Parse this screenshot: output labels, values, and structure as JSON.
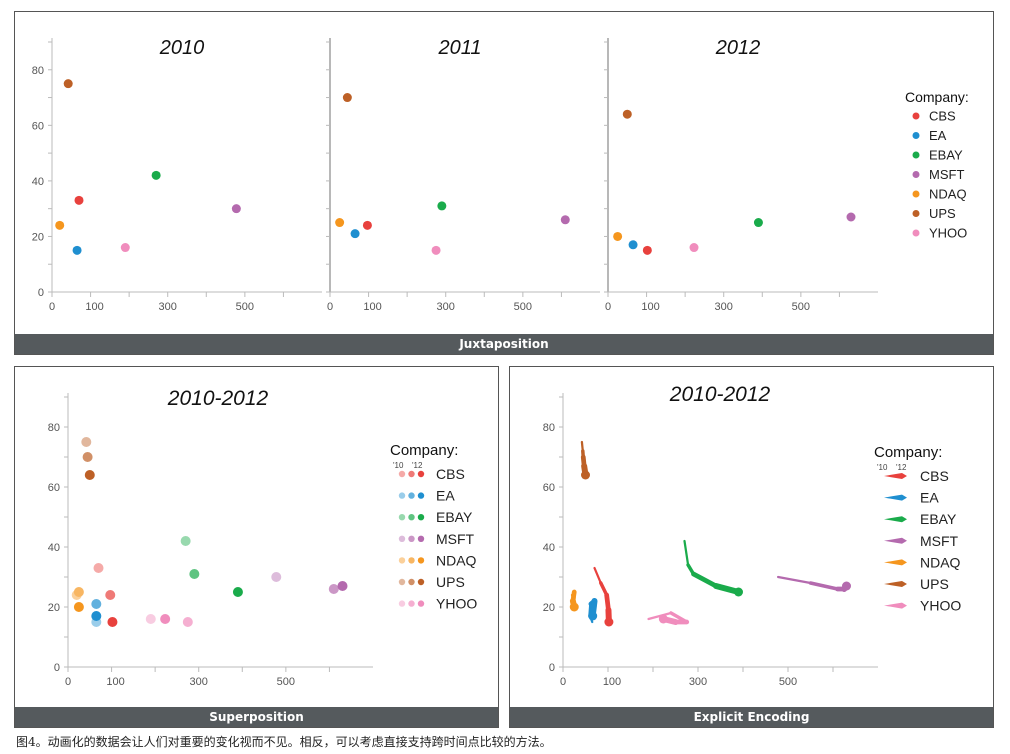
{
  "panels": {
    "juxtaposition": {
      "label": "Juxtaposition"
    },
    "superposition": {
      "label": "Superposition"
    },
    "explicit": {
      "label": "Explicit Encoding"
    }
  },
  "legend": {
    "title": "Company:",
    "year_labels": [
      "'10",
      "'12"
    ],
    "companies": [
      {
        "name": "CBS",
        "color": "#e8413d"
      },
      {
        "name": "EA",
        "color": "#1f8fd0"
      },
      {
        "name": "EBAY",
        "color": "#1aab4b"
      },
      {
        "name": "MSFT",
        "color": "#b46aae"
      },
      {
        "name": "NDAQ",
        "color": "#f5961e"
      },
      {
        "name": "UPS",
        "color": "#bd6026"
      },
      {
        "name": "YHOO",
        "color": "#f08dbd"
      }
    ]
  },
  "caption": "图4。动画化的数据会让人们对重要的变化视而不见。相反，可以考虑直接支持跨时间点比较的方法。",
  "chart_data": [
    {
      "type": "scatter",
      "title": "2010",
      "xticks": [
        0,
        100,
        300,
        500
      ],
      "yticks": [
        0,
        20,
        40,
        60,
        80
      ],
      "xlim": [
        0,
        700
      ],
      "ylim": [
        0,
        90
      ],
      "points": [
        {
          "company": "CBS",
          "x": 70,
          "y": 33
        },
        {
          "company": "EA",
          "x": 65,
          "y": 15
        },
        {
          "company": "EBAY",
          "x": 270,
          "y": 42
        },
        {
          "company": "MSFT",
          "x": 478,
          "y": 30
        },
        {
          "company": "NDAQ",
          "x": 20,
          "y": 24
        },
        {
          "company": "UPS",
          "x": 42,
          "y": 75
        },
        {
          "company": "YHOO",
          "x": 190,
          "y": 16
        }
      ]
    },
    {
      "type": "scatter",
      "title": "2011",
      "xticks": [
        0,
        100,
        300,
        500
      ],
      "yticks": [
        0,
        20,
        40,
        60,
        80
      ],
      "xlim": [
        0,
        700
      ],
      "ylim": [
        0,
        90
      ],
      "points": [
        {
          "company": "CBS",
          "x": 97,
          "y": 24
        },
        {
          "company": "EA",
          "x": 65,
          "y": 21
        },
        {
          "company": "EBAY",
          "x": 290,
          "y": 31
        },
        {
          "company": "MSFT",
          "x": 610,
          "y": 26
        },
        {
          "company": "NDAQ",
          "x": 25,
          "y": 25
        },
        {
          "company": "UPS",
          "x": 45,
          "y": 70
        },
        {
          "company": "YHOO",
          "x": 275,
          "y": 15
        }
      ]
    },
    {
      "type": "scatter",
      "title": "2012",
      "xticks": [
        0,
        100,
        300,
        500
      ],
      "yticks": [
        0,
        20,
        40,
        60,
        80
      ],
      "xlim": [
        0,
        700
      ],
      "ylim": [
        0,
        90
      ],
      "points": [
        {
          "company": "CBS",
          "x": 102,
          "y": 15
        },
        {
          "company": "EA",
          "x": 65,
          "y": 17
        },
        {
          "company": "EBAY",
          "x": 390,
          "y": 25
        },
        {
          "company": "MSFT",
          "x": 630,
          "y": 27
        },
        {
          "company": "NDAQ",
          "x": 25,
          "y": 20
        },
        {
          "company": "UPS",
          "x": 50,
          "y": 64
        },
        {
          "company": "YHOO",
          "x": 223,
          "y": 16
        }
      ]
    },
    {
      "type": "scatter",
      "title": "2010-2012",
      "xticks": [
        0,
        100,
        300,
        500
      ],
      "yticks": [
        0,
        20,
        40,
        60,
        80
      ],
      "xlim": [
        0,
        700
      ],
      "ylim": [
        0,
        90
      ],
      "series_by_year": [
        "2010",
        "2011",
        "2012"
      ]
    },
    {
      "type": "line",
      "title": "2010-2012",
      "xticks": [
        0,
        100,
        300,
        500
      ],
      "yticks": [
        0,
        20,
        40,
        60,
        80
      ],
      "xlim": [
        0,
        700
      ],
      "ylim": [
        0,
        90
      ],
      "trajectories": [
        {
          "company": "CBS",
          "path": [
            [
              70,
              33
            ],
            [
              84,
              28
            ],
            [
              97,
              24
            ],
            [
              101,
              19
            ],
            [
              102,
              15
            ]
          ]
        },
        {
          "company": "EA",
          "path": [
            [
              65,
              15
            ],
            [
              60,
              17
            ],
            [
              62,
              21
            ],
            [
              70,
              22
            ],
            [
              66,
              17
            ]
          ]
        },
        {
          "company": "EBAY",
          "path": [
            [
              270,
              42
            ],
            [
              278,
              34
            ],
            [
              290,
              31
            ],
            [
              340,
              27
            ],
            [
              390,
              25
            ]
          ]
        },
        {
          "company": "MSFT",
          "path": [
            [
              478,
              30
            ],
            [
              550,
              28
            ],
            [
              610,
              26
            ],
            [
              625,
              26
            ],
            [
              630,
              27
            ]
          ]
        },
        {
          "company": "NDAQ",
          "path": [
            [
              20,
              24
            ],
            [
              24,
              22
            ],
            [
              25,
              25
            ],
            [
              22,
              22
            ],
            [
              25,
              20
            ]
          ]
        },
        {
          "company": "UPS",
          "path": [
            [
              42,
              75
            ],
            [
              44,
              72
            ],
            [
              45,
              70
            ],
            [
              47,
              67
            ],
            [
              50,
              64
            ]
          ]
        },
        {
          "company": "YHOO",
          "path": [
            [
              190,
              16
            ],
            [
              240,
              18
            ],
            [
              275,
              15
            ],
            [
              250,
              15
            ],
            [
              223,
              16
            ]
          ]
        }
      ]
    }
  ]
}
